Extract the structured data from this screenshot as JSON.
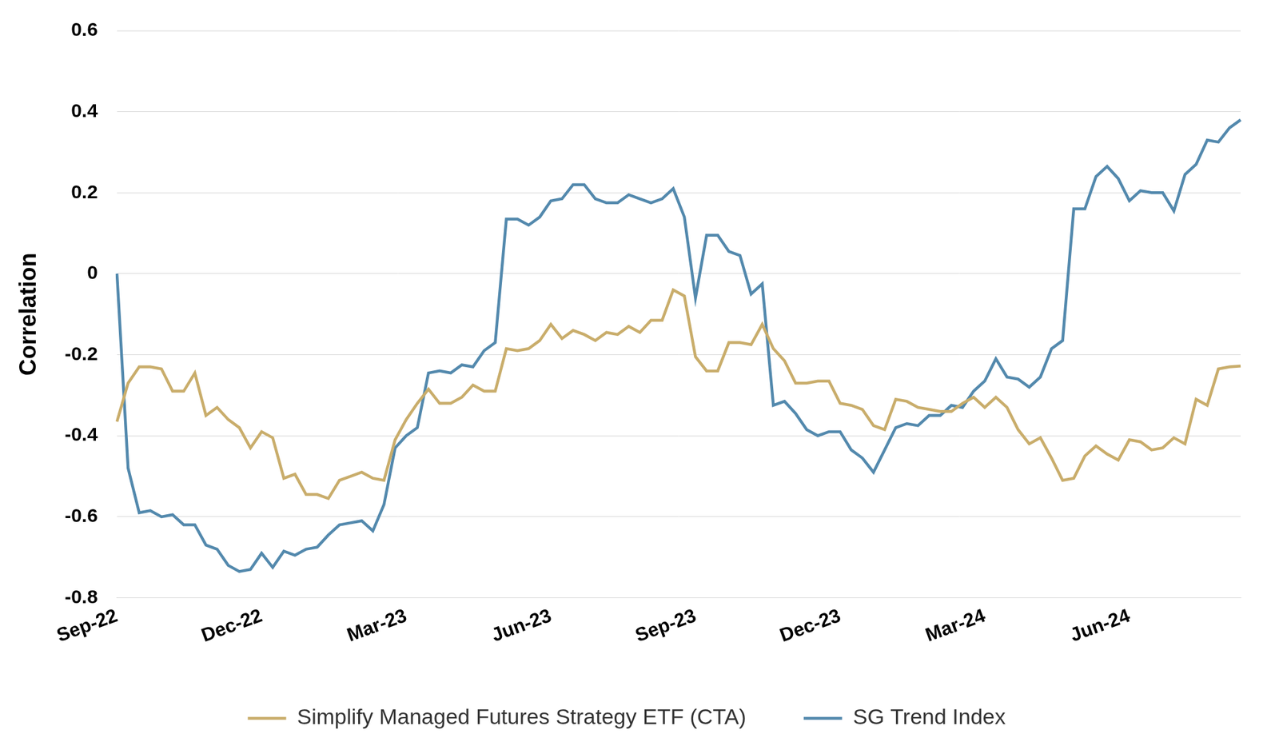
{
  "chart_data": {
    "type": "line",
    "y_label": "Correlation",
    "categories": [
      "Sep-22",
      null,
      null,
      null,
      null,
      null,
      null,
      null,
      null,
      null,
      null,
      null,
      null,
      "Dec-22",
      null,
      null,
      null,
      null,
      null,
      null,
      null,
      null,
      null,
      null,
      null,
      null,
      "Mar-23",
      null,
      null,
      null,
      null,
      null,
      null,
      null,
      null,
      null,
      null,
      null,
      null,
      "Jun-23",
      null,
      null,
      null,
      null,
      null,
      null,
      null,
      null,
      null,
      null,
      null,
      null,
      "Sep-23",
      null,
      null,
      null,
      null,
      null,
      null,
      null,
      null,
      null,
      null,
      null,
      null,
      "Dec-23",
      null,
      null,
      null,
      null,
      null,
      null,
      null,
      null,
      null,
      null,
      null,
      null,
      "Mar-24",
      null,
      null,
      null,
      null,
      null,
      null,
      null,
      null,
      null,
      null,
      null,
      null,
      "Jun-24",
      null,
      null,
      null,
      null,
      null,
      null,
      null,
      null,
      null,
      null
    ],
    "series": [
      {
        "name": "Simplify Managed Futures Strategy ETF (CTA)",
        "color": "#c9ad6b",
        "values": [
          -0.365,
          -0.27,
          -0.23,
          -0.23,
          -0.235,
          -0.29,
          -0.29,
          -0.245,
          -0.35,
          -0.33,
          -0.36,
          -0.38,
          -0.43,
          -0.39,
          -0.405,
          -0.505,
          -0.495,
          -0.545,
          -0.545,
          -0.555,
          -0.51,
          -0.5,
          -0.49,
          -0.505,
          -0.51,
          -0.41,
          -0.36,
          -0.32,
          -0.285,
          -0.32,
          -0.32,
          -0.305,
          -0.275,
          -0.29,
          -0.29,
          -0.185,
          -0.19,
          -0.185,
          -0.165,
          -0.125,
          -0.16,
          -0.14,
          -0.15,
          -0.165,
          -0.145,
          -0.15,
          -0.13,
          -0.145,
          -0.115,
          -0.115,
          -0.04,
          -0.055,
          -0.205,
          -0.24,
          -0.24,
          -0.17,
          -0.17,
          -0.175,
          -0.125,
          -0.185,
          -0.215,
          -0.27,
          -0.27,
          -0.265,
          -0.265,
          -0.32,
          -0.325,
          -0.335,
          -0.375,
          -0.385,
          -0.31,
          -0.315,
          -0.33,
          -0.335,
          -0.34,
          -0.34,
          -0.32,
          -0.305,
          -0.33,
          -0.305,
          -0.33,
          -0.385,
          -0.42,
          -0.405,
          -0.455,
          -0.51,
          -0.505,
          -0.45,
          -0.425,
          -0.445,
          -0.46,
          -0.41,
          -0.415,
          -0.435,
          -0.43,
          -0.405,
          -0.42,
          -0.31,
          -0.325,
          -0.235,
          -0.23,
          -0.228
        ]
      },
      {
        "name": "SG Trend Index",
        "color": "#5389ad",
        "values": [
          0,
          -0.48,
          -0.59,
          -0.585,
          -0.6,
          -0.595,
          -0.62,
          -0.62,
          -0.67,
          -0.68,
          -0.72,
          -0.735,
          -0.73,
          -0.69,
          -0.725,
          -0.685,
          -0.695,
          -0.68,
          -0.675,
          -0.645,
          -0.62,
          -0.615,
          -0.61,
          -0.635,
          -0.57,
          -0.43,
          -0.4,
          -0.38,
          -0.245,
          -0.24,
          -0.245,
          -0.225,
          -0.23,
          -0.19,
          -0.17,
          0.135,
          0.135,
          0.12,
          0.14,
          0.18,
          0.185,
          0.22,
          0.22,
          0.185,
          0.175,
          0.175,
          0.195,
          0.185,
          0.175,
          0.185,
          0.21,
          0.14,
          -0.06,
          0.095,
          0.095,
          0.055,
          0.045,
          -0.05,
          -0.025,
          -0.325,
          -0.315,
          -0.345,
          -0.385,
          -0.4,
          -0.39,
          -0.39,
          -0.435,
          -0.455,
          -0.49,
          -0.435,
          -0.38,
          -0.37,
          -0.375,
          -0.35,
          -0.35,
          -0.325,
          -0.33,
          -0.29,
          -0.265,
          -0.21,
          -0.255,
          -0.26,
          -0.28,
          -0.255,
          -0.185,
          -0.165,
          0.16,
          0.16,
          0.24,
          0.265,
          0.235,
          0.18,
          0.205,
          0.2,
          0.2,
          0.155,
          0.245,
          0.27,
          0.33,
          0.325,
          0.36,
          0.38
        ]
      }
    ],
    "ylim": [
      -0.8,
      0.6
    ],
    "yticks": [
      -0.8,
      -0.6,
      -0.4,
      -0.2,
      0,
      0.2,
      0.4,
      0.6
    ],
    "grid": true,
    "legend": "bottom"
  }
}
